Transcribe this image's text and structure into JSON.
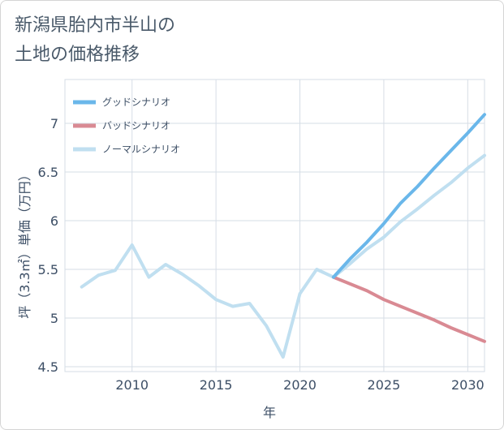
{
  "title_lines": [
    "新潟県胎内市半山の",
    "土地の価格推移"
  ],
  "chart_data": {
    "type": "line",
    "xlabel": "年",
    "ylabel": "坪（3.3㎡）単価（万円）",
    "xlim": [
      2006,
      2031
    ],
    "ylim": [
      4.45,
      7.45
    ],
    "x_ticks": [
      2010,
      2015,
      2020,
      2025,
      2030
    ],
    "y_ticks": [
      4.5,
      5,
      5.5,
      6,
      6.5,
      7
    ],
    "y_tick_labels": [
      "4.5",
      "5",
      "5.5",
      "6",
      "6.5",
      "7"
    ],
    "grid": true,
    "legend_position": "top-left",
    "series": [
      {
        "name": "グッドシナリオ",
        "color": "#6ab7ea",
        "x": [
          2022,
          2023,
          2024,
          2025,
          2026,
          2027,
          2028,
          2029,
          2030,
          2031
        ],
        "y": [
          5.42,
          5.61,
          5.78,
          5.97,
          6.18,
          6.35,
          6.54,
          6.72,
          6.9,
          7.09
        ]
      },
      {
        "name": "バッドシナリオ",
        "color": "#d98a93",
        "x": [
          2022,
          2023,
          2024,
          2025,
          2026,
          2027,
          2028,
          2029,
          2030,
          2031
        ],
        "y": [
          5.42,
          5.35,
          5.28,
          5.19,
          5.12,
          5.05,
          4.98,
          4.9,
          4.83,
          4.76
        ]
      },
      {
        "name": "ノーマルシナリオ",
        "color": "#c0dff0",
        "x": [
          2007,
          2008,
          2009,
          2010,
          2011,
          2012,
          2013,
          2014,
          2015,
          2016,
          2017,
          2018,
          2019,
          2020,
          2021,
          2022,
          2023,
          2024,
          2025,
          2026,
          2027,
          2028,
          2029,
          2030,
          2031
        ],
        "y": [
          5.32,
          5.44,
          5.49,
          5.75,
          5.42,
          5.55,
          5.45,
          5.33,
          5.19,
          5.12,
          5.15,
          4.92,
          4.6,
          5.25,
          5.5,
          5.42,
          5.56,
          5.71,
          5.83,
          5.99,
          6.12,
          6.26,
          6.39,
          6.54,
          6.67
        ]
      }
    ]
  }
}
